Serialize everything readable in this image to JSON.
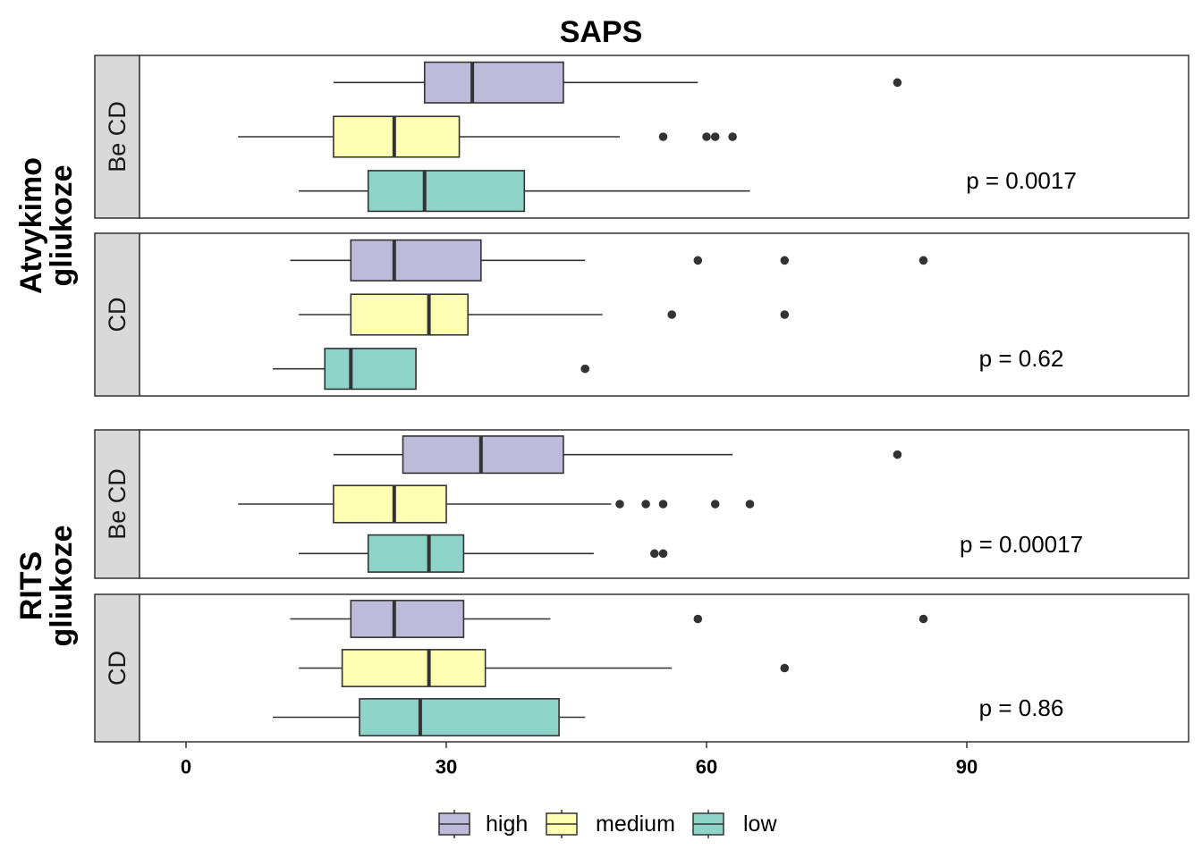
{
  "chart_data": {
    "type": "boxplot",
    "orientation": "horizontal",
    "title": "SAPS",
    "xlabel": "",
    "ylabel": "",
    "xlim": [
      -8.5,
      111
    ],
    "x_ticks": [
      0,
      30,
      60,
      90
    ],
    "grid": false,
    "legend": {
      "position": "bottom",
      "items": [
        {
          "name": "high",
          "color": "#BEBADA"
        },
        {
          "name": "medium",
          "color": "#FFFFB3"
        },
        {
          "name": "low",
          "color": "#8DD3C7"
        }
      ]
    },
    "groups": [
      {
        "label_lines": [
          "Atvykimo",
          "gliukoze"
        ],
        "panels": [
          {
            "strip": "Be CD",
            "p_label": "p = 0.0017",
            "boxes": [
              {
                "level": "high",
                "whisker_low": 17,
                "q1": 27.5,
                "median": 33,
                "q3": 43.5,
                "whisker_high": 59,
                "outliers": [
                  82
                ]
              },
              {
                "level": "medium",
                "whisker_low": 6,
                "q1": 17,
                "median": 24,
                "q3": 31.5,
                "whisker_high": 50,
                "outliers": [
                  55,
                  60,
                  61,
                  63
                ]
              },
              {
                "level": "low",
                "whisker_low": 13,
                "q1": 21,
                "median": 27.5,
                "q3": 39,
                "whisker_high": 65,
                "outliers": []
              }
            ]
          },
          {
            "strip": "CD",
            "p_label": "p = 0.62",
            "boxes": [
              {
                "level": "high",
                "whisker_low": 12,
                "q1": 19,
                "median": 24,
                "q3": 34,
                "whisker_high": 46,
                "outliers": [
                  59,
                  69,
                  85
                ]
              },
              {
                "level": "medium",
                "whisker_low": 13,
                "q1": 19,
                "median": 28,
                "q3": 32.5,
                "whisker_high": 48,
                "outliers": [
                  56,
                  69
                ]
              },
              {
                "level": "low",
                "whisker_low": 10,
                "q1": 16,
                "median": 19,
                "q3": 26.5,
                "whisker_high": 26.5,
                "outliers": [
                  46
                ]
              }
            ]
          }
        ]
      },
      {
        "label_lines": [
          "RITS",
          "gliukoze"
        ],
        "panels": [
          {
            "strip": "Be CD",
            "p_label": "p = 0.00017",
            "boxes": [
              {
                "level": "high",
                "whisker_low": 17,
                "q1": 25,
                "median": 34,
                "q3": 43.5,
                "whisker_high": 63,
                "outliers": [
                  82
                ]
              },
              {
                "level": "medium",
                "whisker_low": 6,
                "q1": 17,
                "median": 24,
                "q3": 30,
                "whisker_high": 49,
                "outliers": [
                  50,
                  53,
                  55,
                  61,
                  65
                ]
              },
              {
                "level": "low",
                "whisker_low": 13,
                "q1": 21,
                "median": 28,
                "q3": 32,
                "whisker_high": 47,
                "outliers": [
                  54,
                  55
                ]
              }
            ]
          },
          {
            "strip": "CD",
            "p_label": "p = 0.86",
            "boxes": [
              {
                "level": "high",
                "whisker_low": 12,
                "q1": 19,
                "median": 24,
                "q3": 32,
                "whisker_high": 42,
                "outliers": [
                  59,
                  85
                ]
              },
              {
                "level": "medium",
                "whisker_low": 13,
                "q1": 18,
                "median": 28,
                "q3": 34.5,
                "whisker_high": 56,
                "outliers": [
                  69
                ]
              },
              {
                "level": "low",
                "whisker_low": 10,
                "q1": 20,
                "median": 27,
                "q3": 43,
                "whisker_high": 46,
                "outliers": []
              }
            ]
          }
        ]
      }
    ]
  }
}
